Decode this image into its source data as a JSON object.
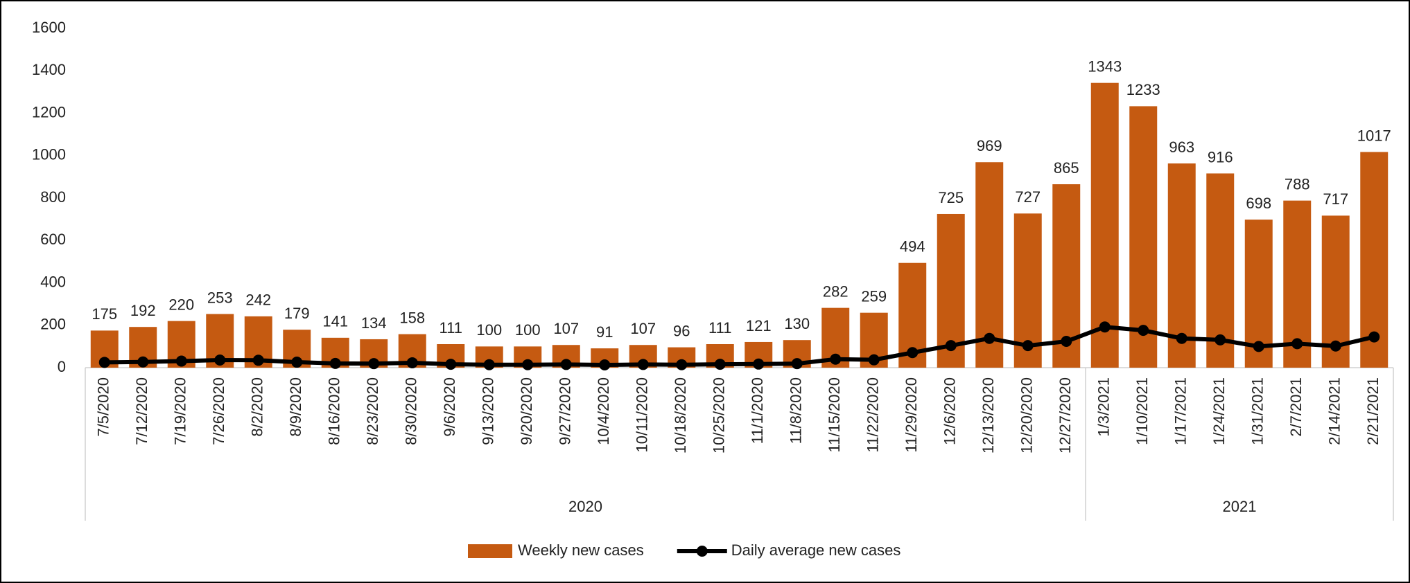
{
  "chart_data": {
    "type": "bar_line",
    "categories": [
      "7/5/2020",
      "7/12/2020",
      "7/19/2020",
      "7/26/2020",
      "8/2/2020",
      "8/9/2020",
      "8/16/2020",
      "8/23/2020",
      "8/30/2020",
      "9/6/2020",
      "9/13/2020",
      "9/20/2020",
      "9/27/2020",
      "10/4/2020",
      "10/11/2020",
      "10/18/2020",
      "10/25/2020",
      "11/1/2020",
      "11/8/2020",
      "11/15/2020",
      "11/22/2020",
      "11/29/2020",
      "12/6/2020",
      "12/13/2020",
      "12/20/2020",
      "12/27/2020",
      "1/3/2021",
      "1/10/2021",
      "1/17/2021",
      "1/24/2021",
      "1/31/2021",
      "2/7/2021",
      "2/14/2021",
      "2/21/2021"
    ],
    "groups": [
      {
        "label": "2020",
        "span": 26
      },
      {
        "label": "2021",
        "span": 8
      }
    ],
    "series": [
      {
        "name": "Weekly new cases",
        "type": "bar",
        "color": "#c55a11",
        "values": [
          175,
          192,
          220,
          253,
          242,
          179,
          141,
          134,
          158,
          111,
          100,
          100,
          107,
          91,
          107,
          96,
          111,
          121,
          130,
          282,
          259,
          494,
          725,
          969,
          727,
          865,
          1343,
          1233,
          963,
          916,
          698,
          788,
          717,
          1017
        ]
      },
      {
        "name": "Daily average new cases",
        "type": "line",
        "color": "#000000",
        "values": [
          25,
          27,
          31,
          36,
          35,
          26,
          20,
          19,
          23,
          16,
          14,
          14,
          15,
          13,
          15,
          14,
          16,
          17,
          19,
          40,
          37,
          71,
          104,
          138,
          104,
          124,
          192,
          176,
          138,
          131,
          100,
          113,
          102,
          145
        ]
      }
    ],
    "ylim": [
      0,
      1600
    ],
    "yticks": [
      0,
      200,
      400,
      600,
      800,
      1000,
      1200,
      1400,
      1600
    ],
    "legend": "bottom"
  }
}
